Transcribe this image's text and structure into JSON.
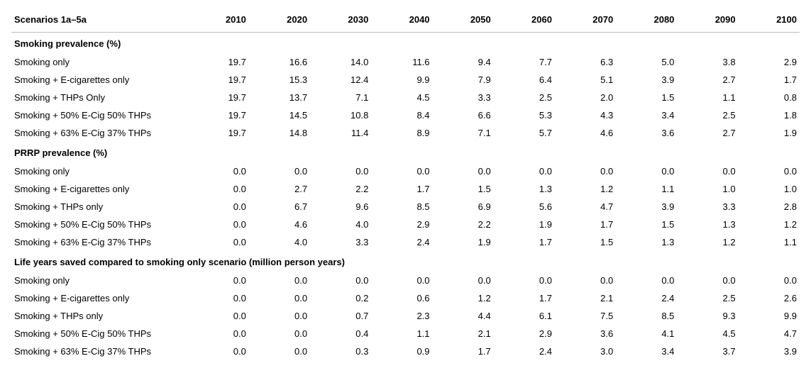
{
  "header_label": "Scenarios 1a–5a",
  "years": [
    "2010",
    "2020",
    "2030",
    "2040",
    "2050",
    "2060",
    "2070",
    "2080",
    "2090",
    "2100"
  ],
  "sections": [
    {
      "title": "Smoking prevalence (%)",
      "rows": [
        {
          "label": "Smoking only",
          "values": [
            "19.7",
            "16.6",
            "14.0",
            "11.6",
            "9.4",
            "7.7",
            "6.3",
            "5.0",
            "3.8",
            "2.9"
          ]
        },
        {
          "label": "Smoking + E-cigarettes only",
          "values": [
            "19.7",
            "15.3",
            "12.4",
            "9.9",
            "7.9",
            "6.4",
            "5.1",
            "3.9",
            "2.7",
            "1.7"
          ]
        },
        {
          "label": "Smoking + THPs Only",
          "values": [
            "19.7",
            "13.7",
            "7.1",
            "4.5",
            "3.3",
            "2.5",
            "2.0",
            "1.5",
            "1.1",
            "0.8"
          ]
        },
        {
          "label": "Smoking + 50% E-Cig 50% THPs",
          "values": [
            "19.7",
            "14.5",
            "10.8",
            "8.4",
            "6.6",
            "5.3",
            "4.3",
            "3.4",
            "2.5",
            "1.8"
          ]
        },
        {
          "label": "Smoking + 63% E-Cig 37% THPs",
          "values": [
            "19.7",
            "14.8",
            "11.4",
            "8.9",
            "7.1",
            "5.7",
            "4.6",
            "3.6",
            "2.7",
            "1.9"
          ]
        }
      ]
    },
    {
      "title": "PRRP prevalence (%)",
      "rows": [
        {
          "label": "Smoking only",
          "values": [
            "0.0",
            "0.0",
            "0.0",
            "0.0",
            "0.0",
            "0.0",
            "0.0",
            "0.0",
            "0.0",
            "0.0"
          ]
        },
        {
          "label": "Smoking + E-cigarettes only",
          "values": [
            "0.0",
            "2.7",
            "2.2",
            "1.7",
            "1.5",
            "1.3",
            "1.2",
            "1.1",
            "1.0",
            "1.0"
          ]
        },
        {
          "label": "Smoking + THPs only",
          "values": [
            "0.0",
            "6.7",
            "9.6",
            "8.5",
            "6.9",
            "5.6",
            "4.7",
            "3.9",
            "3.3",
            "2.8"
          ]
        },
        {
          "label": "Smoking + 50% E-Cig 50% THPs",
          "values": [
            "0.0",
            "4.6",
            "4.0",
            "2.9",
            "2.2",
            "1.9",
            "1.7",
            "1.5",
            "1.3",
            "1.2"
          ]
        },
        {
          "label": "Smoking + 63% E-Cig 37% THPs",
          "values": [
            "0.0",
            "4.0",
            "3.3",
            "2.4",
            "1.9",
            "1.7",
            "1.5",
            "1.3",
            "1.2",
            "1.1"
          ]
        }
      ]
    },
    {
      "title": "Life years saved compared to smoking only scenario (million person years)",
      "rows": [
        {
          "label": "Smoking only",
          "values": [
            "0.0",
            "0.0",
            "0.0",
            "0.0",
            "0.0",
            "0.0",
            "0.0",
            "0.0",
            "0.0",
            "0.0"
          ]
        },
        {
          "label": "Smoking + E-cigarettes only",
          "values": [
            "0.0",
            "0.0",
            "0.2",
            "0.6",
            "1.2",
            "1.7",
            "2.1",
            "2.4",
            "2.5",
            "2.6"
          ]
        },
        {
          "label": "Smoking + THPs only",
          "values": [
            "0.0",
            "0.0",
            "0.7",
            "2.3",
            "4.4",
            "6.1",
            "7.5",
            "8.5",
            "9.3",
            "9.9"
          ]
        },
        {
          "label": "Smoking + 50% E-Cig 50% THPs",
          "values": [
            "0.0",
            "0.0",
            "0.4",
            "1.1",
            "2.1",
            "2.9",
            "3.6",
            "4.1",
            "4.5",
            "4.7"
          ]
        },
        {
          "label": "Smoking + 63% E-Cig 37% THPs",
          "values": [
            "0.0",
            "0.0",
            "0.3",
            "0.9",
            "1.7",
            "2.4",
            "3.0",
            "3.4",
            "3.7",
            "3.9"
          ]
        }
      ]
    }
  ]
}
